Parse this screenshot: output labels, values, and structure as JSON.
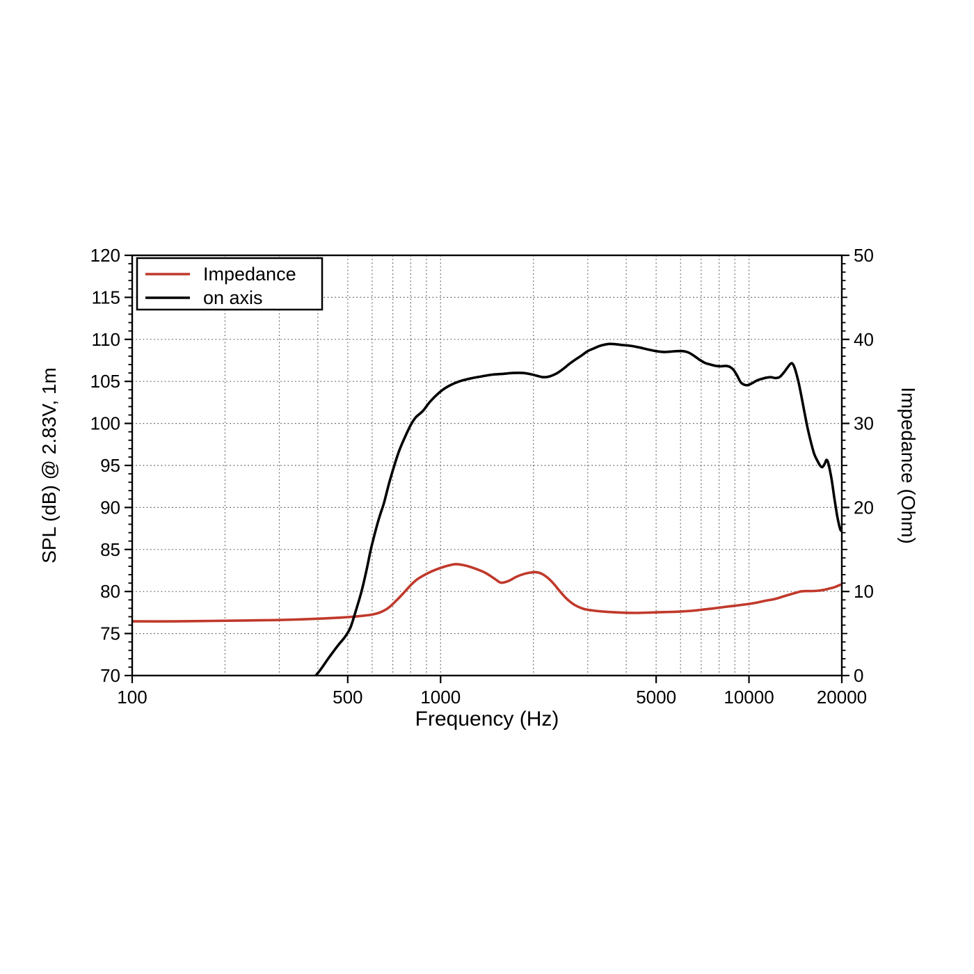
{
  "chart_data": {
    "type": "line",
    "title": "",
    "x_axis": {
      "label": "Frequency (Hz)",
      "scale": "log",
      "min": 100,
      "max": 20000,
      "major_ticks": [
        {
          "value": 100,
          "label": "100"
        },
        {
          "value": 500,
          "label": "500"
        },
        {
          "value": 1000,
          "label": "1000"
        },
        {
          "value": 5000,
          "label": "5000"
        },
        {
          "value": 10000,
          "label": "10000"
        },
        {
          "value": 20000,
          "label": "20000"
        }
      ],
      "minor_gridlines": [
        200,
        300,
        400,
        500,
        600,
        700,
        800,
        900,
        1000,
        2000,
        3000,
        4000,
        5000,
        6000,
        7000,
        8000,
        9000,
        10000
      ]
    },
    "y_left": {
      "label": "SPL (dB) @ 2.83V, 1m",
      "min": 70,
      "max": 120,
      "major_step": 5,
      "minor_step": 1,
      "major_ticks": [
        70,
        75,
        80,
        85,
        90,
        95,
        100,
        105,
        110,
        115,
        120
      ],
      "gridlines": [
        75,
        80,
        85,
        90,
        95,
        100,
        105,
        110,
        115
      ]
    },
    "y_right": {
      "label": "Impedance (Ohm)",
      "min": 0,
      "max": 50,
      "major_step": 10,
      "minor_step": 1,
      "major_ticks": [
        0,
        10,
        20,
        30,
        40,
        50
      ]
    },
    "grid": {
      "style": "dotted",
      "color": "#555555"
    },
    "legend": {
      "position": "top-left",
      "entries": [
        {
          "label": "Impedance",
          "color": "#c0392b"
        },
        {
          "label": "on axis",
          "color": "#000000"
        }
      ]
    },
    "series": [
      {
        "name": "Impedance",
        "axis": "right",
        "unit": "Ohm",
        "color": "#c0392b",
        "points": [
          [
            100,
            6.45
          ],
          [
            140,
            6.45
          ],
          [
            180,
            6.5
          ],
          [
            230,
            6.55
          ],
          [
            290,
            6.6
          ],
          [
            350,
            6.68
          ],
          [
            420,
            6.8
          ],
          [
            480,
            6.9
          ],
          [
            540,
            7.05
          ],
          [
            600,
            7.25
          ],
          [
            640,
            7.55
          ],
          [
            680,
            8.1
          ],
          [
            720,
            8.95
          ],
          [
            760,
            9.85
          ],
          [
            800,
            10.75
          ],
          [
            840,
            11.45
          ],
          [
            880,
            11.9
          ],
          [
            930,
            12.35
          ],
          [
            990,
            12.75
          ],
          [
            1050,
            13.05
          ],
          [
            1120,
            13.25
          ],
          [
            1200,
            13.1
          ],
          [
            1300,
            12.7
          ],
          [
            1400,
            12.2
          ],
          [
            1500,
            11.5
          ],
          [
            1570,
            11.05
          ],
          [
            1660,
            11.25
          ],
          [
            1760,
            11.75
          ],
          [
            1870,
            12.1
          ],
          [
            1960,
            12.25
          ],
          [
            2040,
            12.3
          ],
          [
            2130,
            12.1
          ],
          [
            2230,
            11.6
          ],
          [
            2330,
            10.9
          ],
          [
            2440,
            10.0
          ],
          [
            2570,
            9.1
          ],
          [
            2720,
            8.4
          ],
          [
            2900,
            7.95
          ],
          [
            3100,
            7.75
          ],
          [
            3400,
            7.6
          ],
          [
            3800,
            7.5
          ],
          [
            4300,
            7.45
          ],
          [
            4800,
            7.5
          ],
          [
            5300,
            7.55
          ],
          [
            5900,
            7.6
          ],
          [
            6500,
            7.7
          ],
          [
            7100,
            7.85
          ],
          [
            7700,
            8.0
          ],
          [
            8300,
            8.15
          ],
          [
            9000,
            8.3
          ],
          [
            9700,
            8.45
          ],
          [
            10500,
            8.65
          ],
          [
            11300,
            8.9
          ],
          [
            12100,
            9.1
          ],
          [
            12900,
            9.4
          ],
          [
            13600,
            9.65
          ],
          [
            14200,
            9.85
          ],
          [
            14700,
            10.0
          ],
          [
            15300,
            10.05
          ],
          [
            16000,
            10.05
          ],
          [
            16800,
            10.1
          ],
          [
            17500,
            10.2
          ],
          [
            18200,
            10.35
          ],
          [
            18900,
            10.5
          ],
          [
            19500,
            10.7
          ],
          [
            20000,
            10.85
          ]
        ]
      },
      {
        "name": "on axis",
        "axis": "left",
        "unit": "dB",
        "color": "#000000",
        "points": [
          [
            394,
            70.0
          ],
          [
            410,
            70.8
          ],
          [
            430,
            71.9
          ],
          [
            450,
            72.9
          ],
          [
            470,
            73.8
          ],
          [
            490,
            74.6
          ],
          [
            510,
            75.7
          ],
          [
            530,
            77.6
          ],
          [
            554,
            80.0
          ],
          [
            575,
            82.5
          ],
          [
            594,
            85.0
          ],
          [
            615,
            87.2
          ],
          [
            635,
            89.0
          ],
          [
            655,
            90.5
          ],
          [
            680,
            92.8
          ],
          [
            708,
            95.0
          ],
          [
            735,
            96.8
          ],
          [
            765,
            98.3
          ],
          [
            800,
            99.8
          ],
          [
            830,
            100.7
          ],
          [
            877,
            101.5
          ],
          [
            925,
            102.6
          ],
          [
            985,
            103.6
          ],
          [
            1045,
            104.3
          ],
          [
            1140,
            104.95
          ],
          [
            1250,
            105.35
          ],
          [
            1360,
            105.6
          ],
          [
            1470,
            105.8
          ],
          [
            1600,
            105.9
          ],
          [
            1720,
            106.0
          ],
          [
            1850,
            106.0
          ],
          [
            1960,
            105.85
          ],
          [
            2060,
            105.65
          ],
          [
            2160,
            105.5
          ],
          [
            2260,
            105.6
          ],
          [
            2380,
            105.95
          ],
          [
            2500,
            106.5
          ],
          [
            2620,
            107.1
          ],
          [
            2750,
            107.65
          ],
          [
            2870,
            108.1
          ],
          [
            3000,
            108.6
          ],
          [
            3150,
            108.95
          ],
          [
            3300,
            109.25
          ],
          [
            3500,
            109.45
          ],
          [
            3700,
            109.42
          ],
          [
            3900,
            109.32
          ],
          [
            4100,
            109.25
          ],
          [
            4400,
            109.05
          ],
          [
            4700,
            108.8
          ],
          [
            5000,
            108.6
          ],
          [
            5300,
            108.5
          ],
          [
            5600,
            108.55
          ],
          [
            5850,
            108.6
          ],
          [
            6100,
            108.6
          ],
          [
            6350,
            108.45
          ],
          [
            6600,
            108.1
          ],
          [
            6900,
            107.6
          ],
          [
            7200,
            107.2
          ],
          [
            7500,
            107.0
          ],
          [
            7800,
            106.85
          ],
          [
            8100,
            106.8
          ],
          [
            8400,
            106.85
          ],
          [
            8650,
            106.75
          ],
          [
            8900,
            106.4
          ],
          [
            9150,
            105.7
          ],
          [
            9400,
            104.9
          ],
          [
            9650,
            104.6
          ],
          [
            9900,
            104.55
          ],
          [
            10200,
            104.75
          ],
          [
            10600,
            105.1
          ],
          [
            11000,
            105.3
          ],
          [
            11400,
            105.45
          ],
          [
            11800,
            105.5
          ],
          [
            12200,
            105.4
          ],
          [
            12600,
            105.55
          ],
          [
            13000,
            106.1
          ],
          [
            13300,
            106.6
          ],
          [
            13600,
            107.05
          ],
          [
            13800,
            107.15
          ],
          [
            14000,
            106.8
          ],
          [
            14200,
            106.1
          ],
          [
            14500,
            104.8
          ],
          [
            14800,
            103.2
          ],
          [
            15100,
            101.5
          ],
          [
            15500,
            99.4
          ],
          [
            15900,
            97.7
          ],
          [
            16300,
            96.3
          ],
          [
            16700,
            95.5
          ],
          [
            17000,
            95.0
          ],
          [
            17300,
            94.8
          ],
          [
            17600,
            95.2
          ],
          [
            17850,
            95.65
          ],
          [
            18100,
            95.2
          ],
          [
            18500,
            93.5
          ],
          [
            18900,
            91.2
          ],
          [
            19300,
            89.1
          ],
          [
            19600,
            87.9
          ],
          [
            19850,
            87.25
          ],
          [
            20000,
            87.6
          ]
        ]
      }
    ]
  },
  "colors": {
    "background": "#ffffff",
    "axis": "#000000",
    "grid": "#555555",
    "impedance_curve": "#c0392b",
    "spl_curve": "#000000"
  }
}
